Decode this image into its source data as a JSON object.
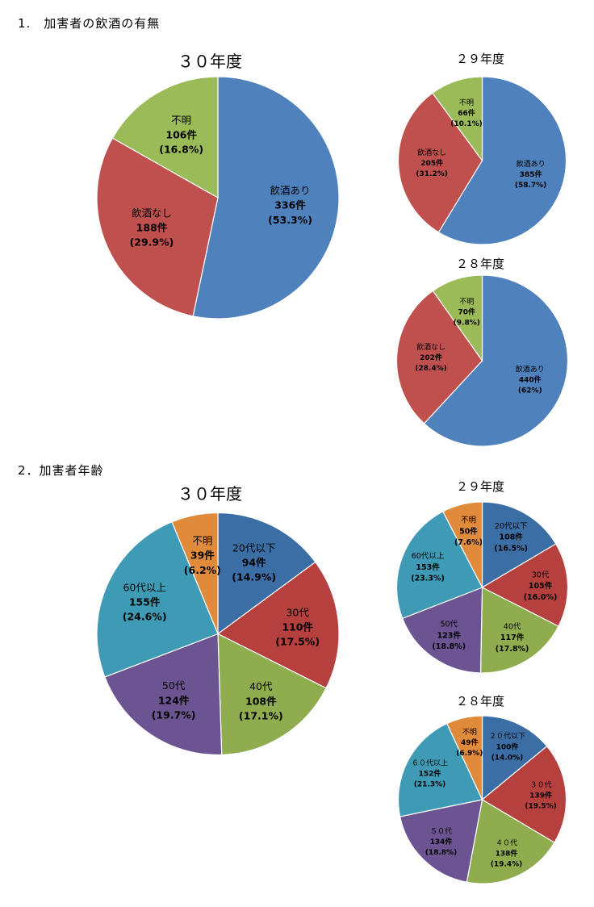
{
  "section1": {
    "heading": "1.　加害者の飲酒の有無"
  },
  "section2": {
    "heading": "2．加害者年齢"
  },
  "colors": {
    "blue": "#4F81BD",
    "red": "#C0504D",
    "green": "#9BBB59",
    "steel": "#3C6EA6",
    "crimson": "#B5403D",
    "olive": "#8FAD4E",
    "purple": "#6B5491",
    "teal": "#3F9BB5",
    "orange": "#E08A3C"
  },
  "chart_data": [
    {
      "id": "drinking-h30",
      "type": "pie",
      "title": "３０年度",
      "slices": [
        {
          "name": "飲酒あり",
          "count": "336件",
          "pct": "(53.3%)",
          "value": 53.3,
          "color": "#4F81BD"
        },
        {
          "name": "飲酒なし",
          "count": "188件",
          "pct": "(29.9%)",
          "value": 29.9,
          "color": "#C0504D"
        },
        {
          "name": "不明",
          "count": "106件",
          "pct": "(16.8%)",
          "value": 16.8,
          "color": "#9BBB59"
        }
      ]
    },
    {
      "id": "drinking-h29",
      "type": "pie",
      "title": "２９年度",
      "slices": [
        {
          "name": "飲酒あり",
          "count": "385件",
          "pct": "(58.7%)",
          "value": 58.7,
          "color": "#4F81BD"
        },
        {
          "name": "飲酒なし",
          "count": "205件",
          "pct": "(31.2%)",
          "value": 31.2,
          "color": "#C0504D"
        },
        {
          "name": "不明",
          "count": "66件",
          "pct": "(10.1%)",
          "value": 10.1,
          "color": "#9BBB59"
        }
      ]
    },
    {
      "id": "drinking-h28",
      "type": "pie",
      "title": "２８年度",
      "slices": [
        {
          "name": "飲酒あり",
          "count": "440件",
          "pct": "(62%)",
          "value": 62,
          "color": "#4F81BD"
        },
        {
          "name": "飲酒なし",
          "count": "202件",
          "pct": "(28.4%)",
          "value": 28.4,
          "color": "#C0504D"
        },
        {
          "name": "不明",
          "count": "70件",
          "pct": "(9.8%)",
          "value": 9.8,
          "color": "#9BBB59"
        }
      ]
    },
    {
      "id": "age-h30",
      "type": "pie",
      "title": "３０年度",
      "slices": [
        {
          "name": "20代以下",
          "count": "94件",
          "pct": "(14.9%)",
          "value": 14.9,
          "color": "#3C6EA6"
        },
        {
          "name": "30代",
          "count": "110件",
          "pct": "(17.5%)",
          "value": 17.5,
          "color": "#B5403D"
        },
        {
          "name": "40代",
          "count": "108件",
          "pct": "(17.1%)",
          "value": 17.1,
          "color": "#8FAD4E"
        },
        {
          "name": "50代",
          "count": "124件",
          "pct": "(19.7%)",
          "value": 19.7,
          "color": "#6B5491"
        },
        {
          "name": "60代以上",
          "count": "155件",
          "pct": "(24.6%)",
          "value": 24.6,
          "color": "#3F9BB5"
        },
        {
          "name": "不明",
          "count": "39件",
          "pct": "(6.2%)",
          "value": 6.2,
          "color": "#E08A3C"
        }
      ]
    },
    {
      "id": "age-h29",
      "type": "pie",
      "title": "２９年度",
      "slices": [
        {
          "name": "20代以下",
          "count": "108件",
          "pct": "(16.5%)",
          "value": 16.5,
          "color": "#3C6EA6"
        },
        {
          "name": "30代",
          "count": "105件",
          "pct": "(16.0%)",
          "value": 16.0,
          "color": "#B5403D"
        },
        {
          "name": "40代",
          "count": "117件",
          "pct": "(17.8%)",
          "value": 17.8,
          "color": "#8FAD4E"
        },
        {
          "name": "50代",
          "count": "123件",
          "pct": "(18.8%)",
          "value": 18.8,
          "color": "#6B5491"
        },
        {
          "name": "60代以上",
          "count": "153件",
          "pct": "(23.3%)",
          "value": 23.3,
          "color": "#3F9BB5"
        },
        {
          "name": "不明",
          "count": "50件",
          "pct": "(7.6%)",
          "value": 7.6,
          "color": "#E08A3C"
        }
      ]
    },
    {
      "id": "age-h28",
      "type": "pie",
      "title": "２８年度",
      "slices": [
        {
          "name": "２０代以下",
          "count": "100件",
          "pct": "(14.0%)",
          "value": 14.0,
          "color": "#3C6EA6"
        },
        {
          "name": "３０代",
          "count": "139件",
          "pct": "(19.5%)",
          "value": 19.5,
          "color": "#B5403D"
        },
        {
          "name": "４０代",
          "count": "138件",
          "pct": "(19.4%)",
          "value": 19.4,
          "color": "#8FAD4E"
        },
        {
          "name": "５０代",
          "count": "134件",
          "pct": "(18.8%)",
          "value": 18.8,
          "color": "#6B5491"
        },
        {
          "name": "６０代以上",
          "count": "152件",
          "pct": "(21.3%)",
          "value": 21.3,
          "color": "#3F9BB5"
        },
        {
          "name": "不明",
          "count": "49件",
          "pct": "(6.9%)",
          "value": 6.9,
          "color": "#E08A3C"
        }
      ]
    }
  ]
}
